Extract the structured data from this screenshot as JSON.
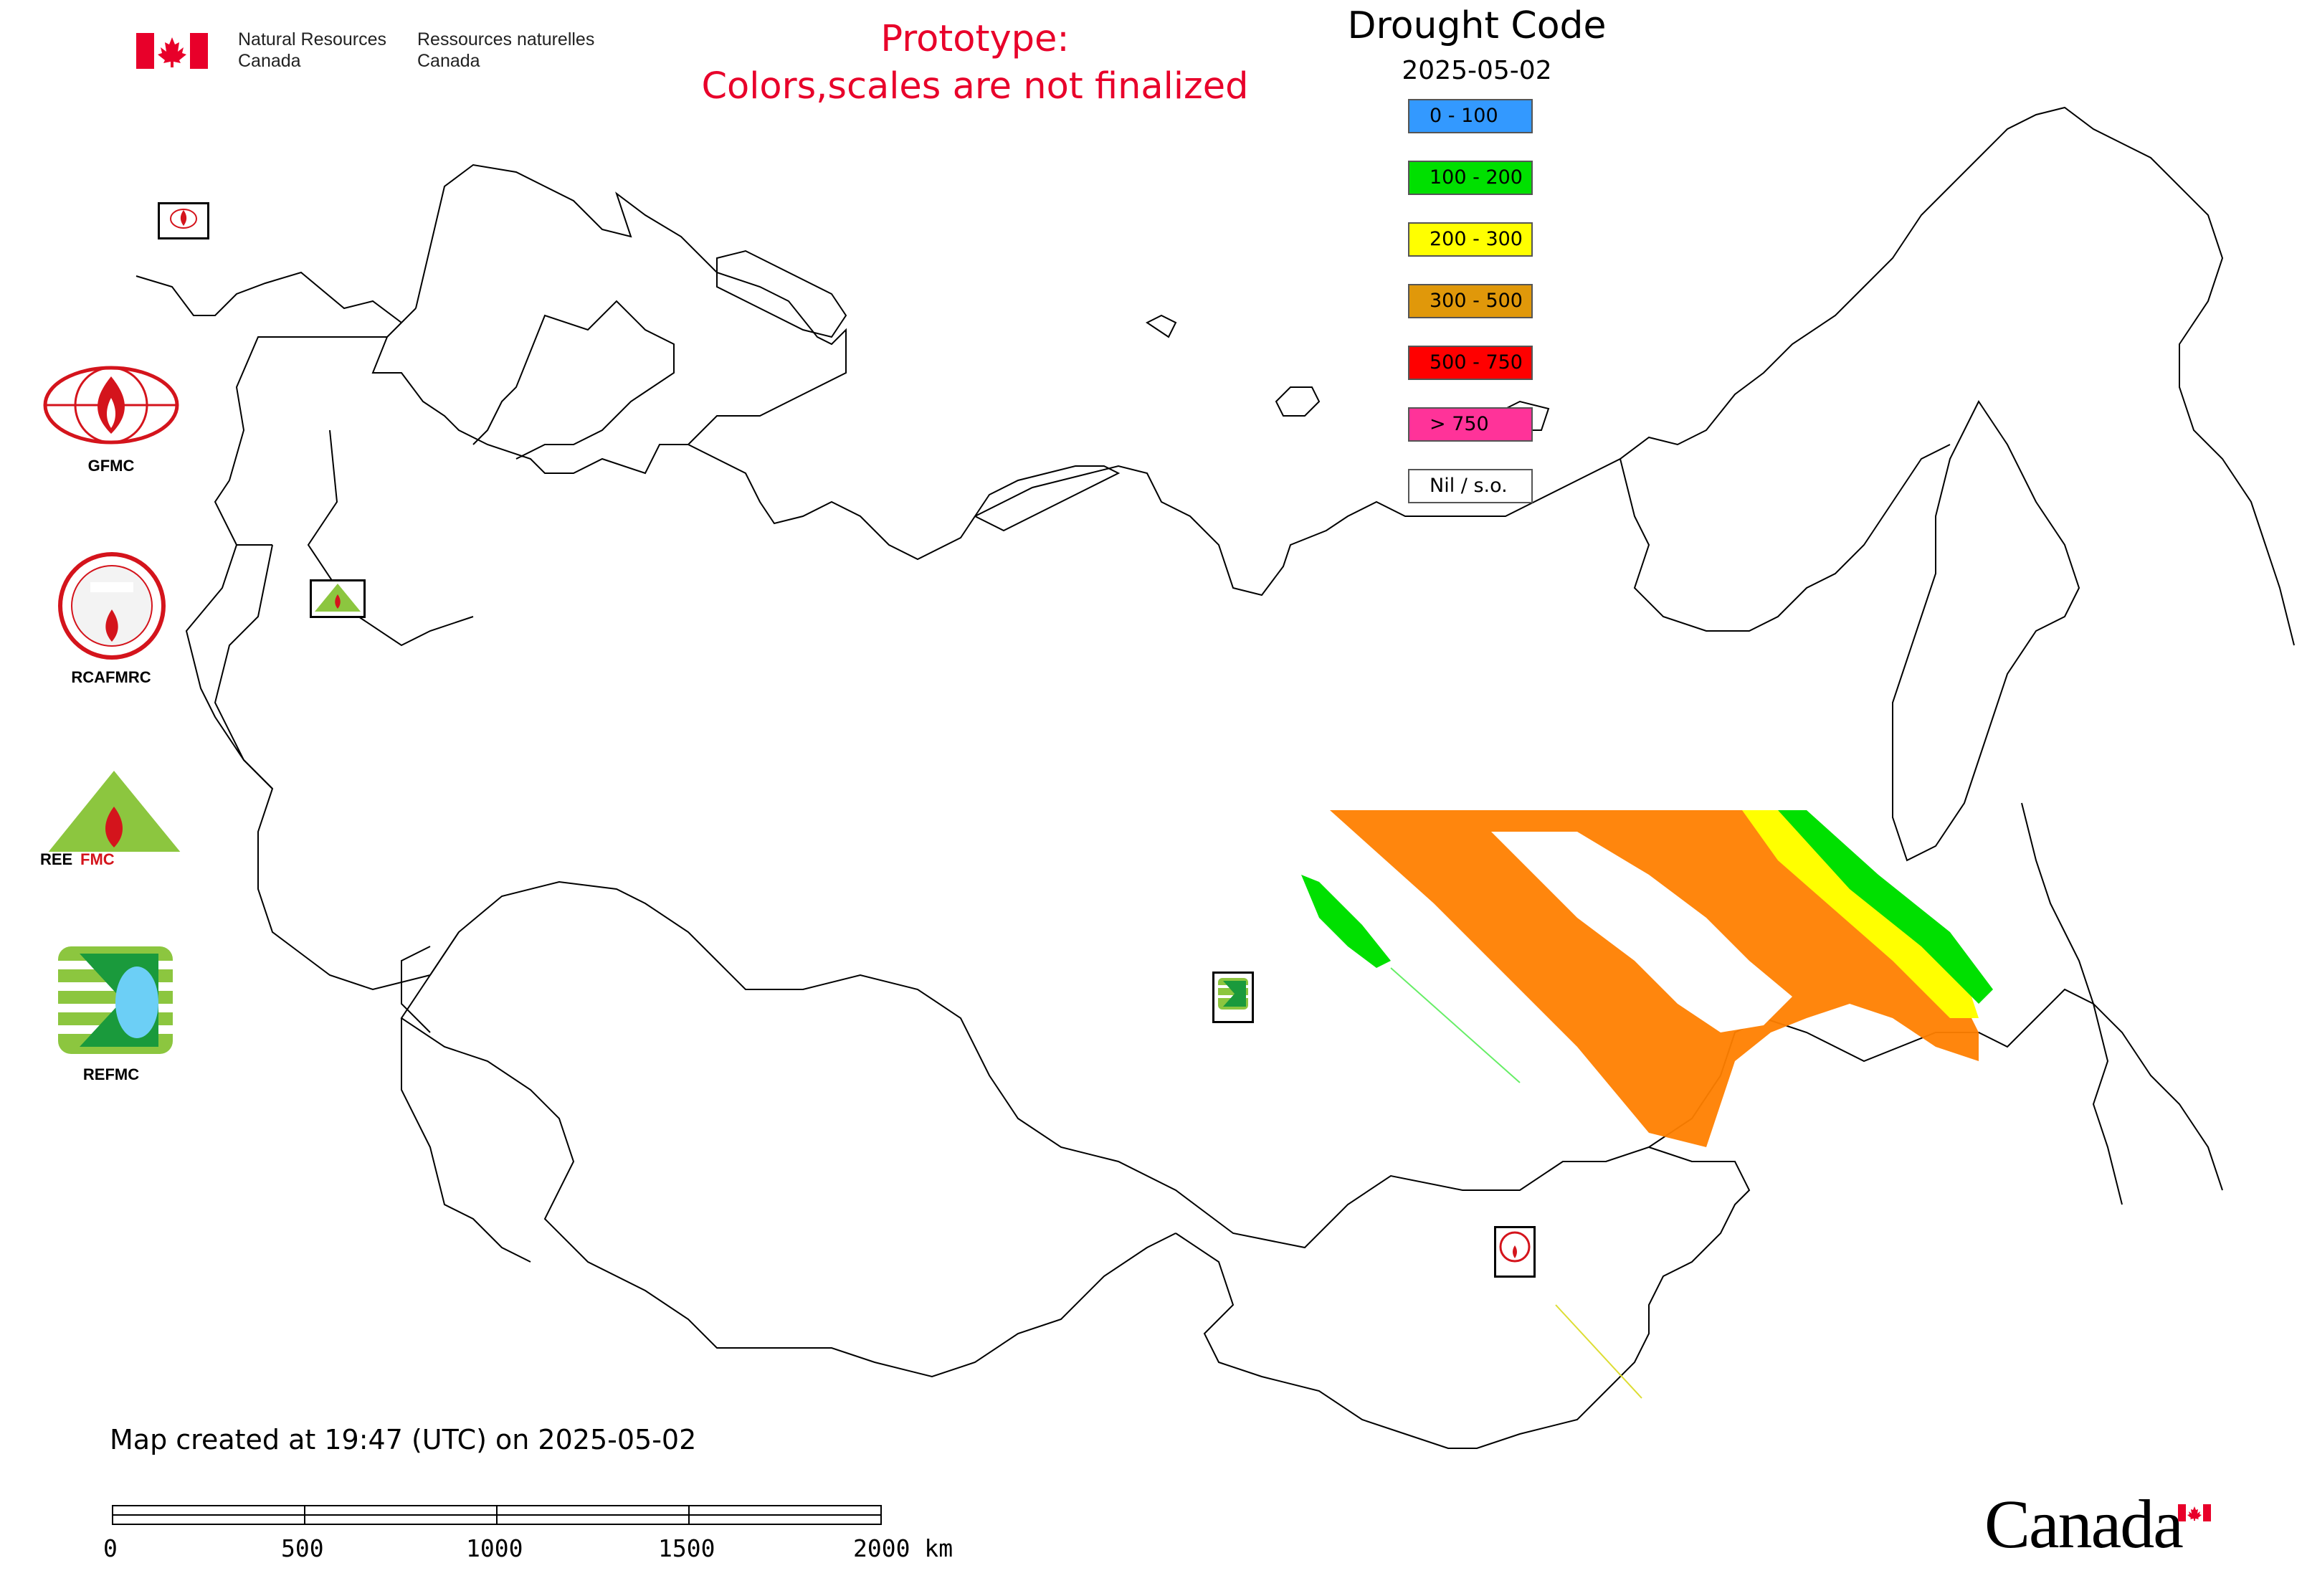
{
  "header": {
    "org_en": "Natural Resources\nCanada",
    "org_fr": "Ressources naturelles\nCanada",
    "prototype_line1": "Prototype:",
    "prototype_line2": "Colors,scales are not finalized"
  },
  "legend": {
    "title": "Drought Code",
    "date": "2025-05-02",
    "classes": [
      {
        "label": "0 - 100",
        "color": "#3399ff"
      },
      {
        "label": "100 - 200",
        "color": "#00e000"
      },
      {
        "label": "200 - 300",
        "color": "#ffff00"
      },
      {
        "label": "300 - 500",
        "color": "#e0980a"
      },
      {
        "label": "500 - 750",
        "color": "#ff0000"
      },
      {
        "label": "> 750",
        "color": "#ff3399"
      },
      {
        "label": "Nil / s.o.",
        "color": "#ffffff"
      }
    ]
  },
  "logos": [
    {
      "name": "GFMC",
      "label": "GFMC"
    },
    {
      "name": "RCAFMRC",
      "label": "RCAFMRC"
    },
    {
      "name": "REEFMC",
      "label": ""
    },
    {
      "name": "REFMC",
      "label": "REFMC"
    }
  ],
  "map_markers": {
    "gfmc_small": "GFMC",
    "reefmc_small": "REEFMC",
    "refmc_small": "REFMC",
    "rcafmrc_small": "RCAFMRC"
  },
  "footer": {
    "created": "Map created at 19:47 (UTC) on 2025-05-02",
    "scale_ticks": [
      "0",
      "500",
      "1000",
      "1500",
      "2000 km"
    ],
    "wordmark": "Canada"
  },
  "colors": {
    "prototype_text": "#e8002a",
    "border": "#000000",
    "fire_orange": "#ff7f00",
    "fire_green": "#00e000",
    "fire_yellow": "#ffff00"
  }
}
